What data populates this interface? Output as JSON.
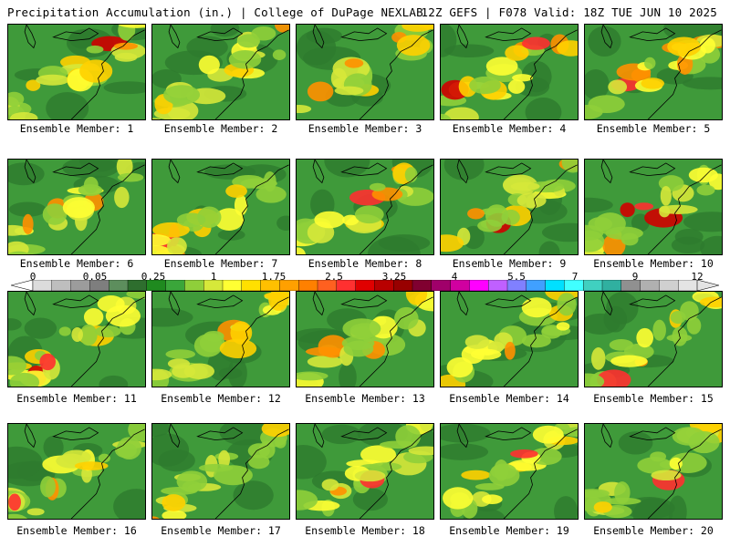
{
  "header": {
    "left_title": "Precipitation Accumulation (in.) | College of DuPage NEXLAB",
    "right_title": "12Z GEFS | F078 Valid: 18Z TUE JUN 10 2025"
  },
  "panels": [
    {
      "caption": "Ensemble Member: 1"
    },
    {
      "caption": "Ensemble Member: 2"
    },
    {
      "caption": "Ensemble Member: 3"
    },
    {
      "caption": "Ensemble Member: 4"
    },
    {
      "caption": "Ensemble Member: 5"
    },
    {
      "caption": "Ensemble Member: 6"
    },
    {
      "caption": "Ensemble Member: 7"
    },
    {
      "caption": "Ensemble Member: 8"
    },
    {
      "caption": "Ensemble Member: 9"
    },
    {
      "caption": "Ensemble Member: 10"
    },
    {
      "caption": "Ensemble Member: 11"
    },
    {
      "caption": "Ensemble Member: 12"
    },
    {
      "caption": "Ensemble Member: 13"
    },
    {
      "caption": "Ensemble Member: 14"
    },
    {
      "caption": "Ensemble Member: 15"
    },
    {
      "caption": "Ensemble Member: 16"
    },
    {
      "caption": "Ensemble Member: 17"
    },
    {
      "caption": "Ensemble Member: 18"
    },
    {
      "caption": "Ensemble Member: 19"
    },
    {
      "caption": "Ensemble Member: 20"
    }
  ],
  "colorbar": {
    "tick_labels": [
      "0",
      "0.05",
      "0.25",
      "1",
      "1.75",
      "2.5",
      "3.25",
      "4",
      "5.5",
      "7",
      "9",
      "12"
    ],
    "colors": [
      "#dcdcdc",
      "#bebebe",
      "#9c9c9c",
      "#7e7e7e",
      "#5d8e5d",
      "#2e6e2e",
      "#1f8a1f",
      "#3aa63a",
      "#8fcf3a",
      "#d6e83a",
      "#ffff33",
      "#ffe000",
      "#ffc000",
      "#ffa000",
      "#ff8000",
      "#ff6020",
      "#ff3030",
      "#e00000",
      "#b80000",
      "#980000",
      "#800030",
      "#a0006a",
      "#d000a0",
      "#ff00ff",
      "#c060ff",
      "#8080ff",
      "#40a0ff",
      "#00e0ff",
      "#40ffff",
      "#40d0c0",
      "#30b0a0",
      "#909090",
      "#b0b0b0",
      "#d0d0d0",
      "#e4e4e4"
    ]
  }
}
